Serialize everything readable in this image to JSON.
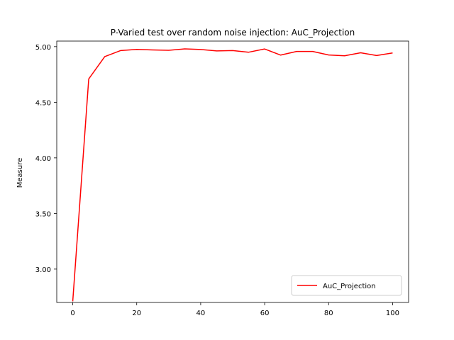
{
  "chart_data": {
    "type": "line",
    "title": "P-Varied test over random noise injection: AuC_Projection",
    "xlabel": "",
    "ylabel": "Measure",
    "xlim": [
      -5,
      105
    ],
    "ylim": [
      2.7,
      5.05
    ],
    "xticks": [
      0,
      20,
      40,
      60,
      80,
      100
    ],
    "yticks": [
      3.0,
      3.5,
      4.0,
      4.5,
      5.0
    ],
    "ytick_labels": [
      "3.00",
      "3.50",
      "4.00",
      "4.50",
      "5.00"
    ],
    "grid": false,
    "legend": {
      "position": "lower-right"
    },
    "x": [
      0,
      5,
      10,
      15,
      20,
      25,
      30,
      35,
      40,
      45,
      50,
      55,
      60,
      65,
      70,
      75,
      80,
      85,
      90,
      95,
      100
    ],
    "series": [
      {
        "name": "AuC_Projection",
        "color": "#ff0000",
        "values": [
          2.71,
          4.71,
          4.91,
          4.965,
          4.975,
          4.97,
          4.967,
          4.98,
          4.974,
          4.962,
          4.965,
          4.95,
          4.979,
          4.924,
          4.957,
          4.957,
          4.925,
          4.918,
          4.945,
          4.92,
          4.943
        ]
      }
    ]
  }
}
